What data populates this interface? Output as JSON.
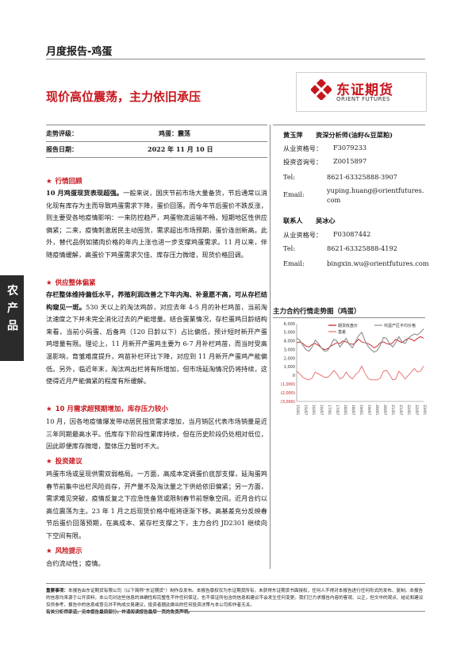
{
  "header": {
    "report_type": "月度报告-鸡蛋"
  },
  "title": "现价高位震荡，主力依旧承压",
  "logo": {
    "name_cn": "东证期货",
    "name_en": "ORIENT FUTURES"
  },
  "meta": {
    "rating_label": "走势评级：",
    "rating_value": "鸡蛋：震荡",
    "date_label": "报告日期：",
    "date_value": "2022 年 11 月 10 日"
  },
  "side_tab": "农产品",
  "sections": [
    {
      "heading": "行情回顾"
    },
    {
      "heading": "供应整体偏紧"
    },
    {
      "heading": "10 月需求超预期增加，库存压力较小"
    },
    {
      "heading": "投资建议"
    },
    {
      "heading": "风险提示"
    }
  ],
  "paragraphs": {
    "p1_bold": "10 月鸡蛋现货表现超强。",
    "p1_rest": "一般来说，国庆节前市场大量备货，节后通常以消化现有库存为主而导致鸡蛋需求下降，蛋价回落。而今年节后蛋价不跌反涨，则主要受各地疫情影响：一来防控趋严，鸡蛋物流运输不畅，短期地区性供应偏紧；二来，疫情刺激居民主动囤货，需求超出市场预期，蛋价连创新高。此外，替代品例如猪肉价格的年内上涨也进一步支撑鸡蛋需求。11 月以来，伴随疫情缓解，高蛋价下鸡蛋需求欠佳、库存压力微增，现货价格回调。",
    "p2_bold": "存栏整体维持偏低水平，养殖利润改善之下年内淘、补意愿不高，可从存栏结构窥见一斑。",
    "p2_rest": "530 天以上的淘汰鸡龄，对应去年 4-5 月的补栏鸡苗，当前淘汰速度之下并未完全消化过去的产能增量。结合蛋業情况，存栏蛋鸡日龄结构来看，当前小码蛋、后备鸡（120 日龄以下）占比偏低，预计短时新开产蛋鸡增量有限。理论上，11 月新开产蛋鸡主要为 6-7 月补栏鸡苗，而当时受高温影响，育雏难度提升，鸡苗补栏环比下降，对应到 11 月新开产蛋鸡产能偏低。另外，临近年末，淘汰鸡出栏将有所增加，但市场延淘情况仍将持续，这使得近月产能偏紧的程度有所缓解。",
    "p3": "10 月，因各地疫情爆发带动居民囤货需求增加，当月销区代表市场销量是近三年同期最高水平。低库存下阶段性累库持续，但在历史阶段仍处相对低位，因此即便库存微增，整体压力暂时不大。",
    "p4": "鸡蛋市场或呈现供需双弱格局。一方面，高成本定调蛋价底部支撑，延淘蛋鸡春节前集中出栏风险尚存，开产量不及淘汰量之下供给依旧偏紧；另一方面，需求难见突破，疫情反复之下应急性备货或限制春节前想象空间。近月合约以高位震荡为主。23 年 1 月之后现货价格中枢将逐渐下移。高基差充分反映春节后蛋价回落预期，在高成本、紧存栏支撑之下，主力合约 JD2301 继续向下空间有限。",
    "p5": "合约流动性；疫情。"
  },
  "analysts": [
    {
      "name": "黄玉萍",
      "role": "资深分析师(油籽&豆菜粕)",
      "rows": [
        {
          "label": "从业资格号：",
          "value": "F3079233"
        },
        {
          "label": "投资咨询号：",
          "value": "Z0015897"
        },
        {
          "label": "Tel:",
          "value": "8621-63325888-3907"
        },
        {
          "label": "Email:",
          "value": "yuping.huang@orientfutures.com"
        }
      ]
    },
    {
      "name": "吴冰心",
      "role": "联系人",
      "rows": [
        {
          "label": "从业资格号：",
          "value": "F03087442"
        },
        {
          "label": "Tel:",
          "value": "8621-63325888-4192"
        },
        {
          "label": "Email:",
          "value": "bingxin.wu@orientfutures.com"
        }
      ]
    }
  ],
  "chart": {
    "title": "主力合约行情走势图（鸡蛋）",
    "colors": {
      "main": "#c8161d",
      "index": "#8c8c8c",
      "basis": "#e66a6a"
    }
  },
  "chart_data": {
    "type": "line",
    "legend": [
      "期货收盘价",
      "鸡蛋产区平均价格",
      "基差"
    ],
    "y_ticks": [
      "6,000",
      "5,000",
      "4,000",
      "3,000",
      "2,000",
      "1,000",
      "0",
      "(1,000)",
      "(2,000)",
      "(3,000)"
    ],
    "x_ticks": [
      "15/01",
      "15/07",
      "16/01",
      "16/07",
      "17/01",
      "17/07",
      "18/01",
      "18/07",
      "19/01",
      "19/07",
      "20/01",
      "20/07",
      "21/01",
      "21/07",
      "22/01",
      "22/07",
      "23/01"
    ],
    "ylim": [
      -3000,
      6000
    ],
    "series": [
      {
        "name": "期货收盘价",
        "values": [
          3800,
          3900,
          3700,
          3400,
          3300,
          3600,
          3700,
          3500,
          3200,
          3000,
          3100,
          3400,
          3600,
          3800,
          3700,
          4000,
          3900,
          3700,
          3600,
          3800,
          4200,
          3900,
          3800,
          3700,
          3500,
          3200,
          3400,
          3800,
          3900,
          3700,
          3600,
          3800,
          4200,
          4000,
          3800,
          4100,
          4300,
          4200,
          4000,
          4300,
          4500,
          4300
        ]
      },
      {
        "name": "鸡蛋产区平均价格",
        "values": [
          4300,
          4100,
          3500,
          3000,
          2800,
          3300,
          4100,
          3700,
          3200,
          2800,
          2900,
          3500,
          4200,
          4000,
          3300,
          3800,
          4300,
          3600,
          3200,
          3900,
          4600,
          5000,
          4100,
          3400,
          3000,
          2700,
          2900,
          3500,
          4400,
          4300,
          3700,
          3300,
          3800,
          4500,
          3900,
          3700,
          4300,
          4600,
          4800,
          4700,
          5000,
          5400
        ]
      },
      {
        "name": "基差",
        "values": [
          500,
          200,
          -200,
          -400,
          -500,
          -300,
          400,
          200,
          0,
          -200,
          -200,
          100,
          600,
          200,
          -400,
          -200,
          400,
          -100,
          -400,
          100,
          400,
          1100,
          300,
          -300,
          -500,
          -500,
          -500,
          -300,
          500,
          600,
          100,
          -500,
          -400,
          500,
          100,
          -400,
          0,
          400,
          800,
          400,
          500,
          1100
        ]
      }
    ]
  },
  "footer": {
    "important_label": "重要事项：",
    "text1": "本报告由东证期货有限公司（以下简称\"东证期货\"）制作及发布。本报告版权仅为东证期货所有，未获得东证期货书面授权，任何人不得对本报告进行任何形式的发布、复制。本报告的信息均来源于公开资料，本公司对这些信息的准确性和完整性不作任何保证，也不保证所包含的信息和建议不会发生任何变更。我们已力求报告内容的客观、公正，但文中的观点、结论和建议仅供参考，报告中的信息或意见并不构成交易建议，投资者据此做出的任何投资决策与本公司和作者无关。",
    "text2": "有关分析师承诺，见本报告最后部分。并请阅读报告最后一页的免责声明。"
  }
}
